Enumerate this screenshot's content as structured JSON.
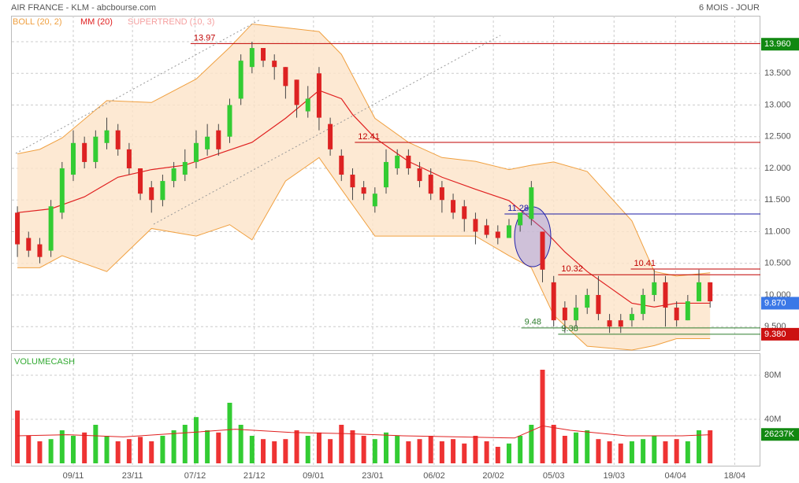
{
  "header": {
    "title": "AIR FRANCE - KLM - abcbourse.com",
    "period": "6 MOIS - JOUR"
  },
  "legend": {
    "boll": "BOLL (20, 2)",
    "mm": "MM (20)",
    "supertrend": "SUPERTREND (10, 3)"
  },
  "chart_data": [
    {
      "type": "candlestick",
      "grid": true,
      "xlim": [
        0,
        67
      ],
      "ylim": [
        9.13,
        14.41
      ],
      "xticks": [
        {
          "value": 5.5,
          "label": "09/11"
        },
        {
          "value": 10.8,
          "label": "23/11"
        },
        {
          "value": 16.4,
          "label": "07/12"
        },
        {
          "value": 21.7,
          "label": "21/12"
        },
        {
          "value": 27.0,
          "label": "09/01"
        },
        {
          "value": 32.3,
          "label": "23/01"
        },
        {
          "value": 37.8,
          "label": "06/02"
        },
        {
          "value": 43.1,
          "label": "20/02"
        },
        {
          "value": 48.5,
          "label": "05/03"
        },
        {
          "value": 53.9,
          "label": "19/03"
        },
        {
          "value": 59.4,
          "label": "04/04"
        },
        {
          "value": 64.7,
          "label": "18/04"
        }
      ],
      "yticks": [
        {
          "value": 9.5,
          "label": "9.500"
        },
        {
          "value": 10,
          "label": "10.000"
        },
        {
          "value": 10.5,
          "label": "10.500"
        },
        {
          "value": 11,
          "label": "11.000"
        },
        {
          "value": 11.5,
          "label": "11.500"
        },
        {
          "value": 12,
          "label": "12.000"
        },
        {
          "value": 12.5,
          "label": "12.500"
        },
        {
          "value": 13,
          "label": "13.000"
        },
        {
          "value": 13.5,
          "label": "13.500"
        },
        {
          "value": 14,
          "label": "14.000"
        }
      ],
      "up_color": "#33cc33",
      "down_color": "#dd2222",
      "x": [
        0.5,
        1.5,
        2.5,
        3.5,
        4.5,
        5.5,
        6.5,
        7.5,
        8.5,
        9.5,
        10.5,
        11.5,
        12.5,
        13.5,
        14.5,
        15.5,
        16.5,
        17.5,
        18.5,
        19.5,
        20.5,
        21.5,
        22.5,
        23.5,
        24.5,
        25.5,
        26.5,
        27.5,
        28.5,
        29.5,
        30.5,
        31.5,
        32.5,
        33.5,
        34.5,
        35.5,
        36.5,
        37.5,
        38.5,
        39.5,
        40.5,
        41.5,
        42.5,
        43.5,
        44.5,
        45.5,
        46.5,
        47.5,
        48.5,
        49.5,
        50.5,
        51.5,
        52.5,
        53.5,
        54.5,
        55.5,
        56.5,
        57.5,
        58.5,
        59.5,
        60.5,
        61.5,
        62.5
      ],
      "open": [
        11.3,
        10.9,
        10.8,
        10.7,
        11.3,
        11.9,
        12.4,
        12.1,
        12.4,
        12.6,
        12.3,
        12.0,
        11.7,
        11.5,
        11.8,
        11.9,
        12.1,
        12.3,
        12.6,
        12.5,
        13.1,
        13.6,
        13.9,
        13.7,
        13.6,
        13.4,
        12.9,
        13.5,
        12.7,
        12.2,
        11.9,
        11.7,
        11.4,
        11.7,
        12.0,
        12.2,
        12.0,
        11.9,
        11.7,
        11.5,
        11.4,
        11.2,
        11.1,
        11.0,
        10.9,
        11.1,
        11.2,
        11.0,
        10.2,
        9.8,
        9.6,
        9.8,
        10.0,
        9.6,
        9.6,
        9.6,
        9.7,
        10.0,
        10.2,
        9.8,
        9.6,
        9.9,
        10.2
      ],
      "high": [
        11.4,
        11.0,
        10.9,
        11.5,
        12.1,
        12.6,
        12.5,
        12.6,
        12.8,
        12.7,
        12.4,
        12.0,
        11.8,
        11.9,
        12.1,
        12.3,
        12.6,
        12.7,
        12.7,
        13.1,
        13.8,
        14.0,
        13.9,
        13.8,
        13.6,
        13.4,
        13.3,
        13.6,
        12.8,
        12.3,
        12.0,
        11.8,
        11.7,
        12.3,
        12.3,
        12.3,
        12.1,
        12.0,
        11.8,
        11.6,
        11.5,
        11.3,
        11.2,
        11.1,
        11.2,
        11.3,
        11.8,
        11.0,
        10.3,
        9.9,
        10.0,
        10.1,
        10.3,
        9.7,
        9.7,
        9.8,
        10.1,
        10.4,
        10.3,
        9.9,
        10.0,
        10.4,
        10.2
      ],
      "low": [
        10.6,
        10.6,
        10.5,
        10.6,
        11.2,
        11.8,
        12.0,
        12.0,
        12.3,
        12.2,
        11.9,
        11.5,
        11.3,
        11.4,
        11.7,
        11.8,
        12.0,
        12.2,
        12.2,
        12.4,
        13.0,
        13.5,
        13.6,
        13.4,
        13.1,
        12.8,
        12.8,
        12.6,
        12.2,
        11.8,
        11.5,
        11.5,
        11.3,
        11.6,
        11.9,
        11.9,
        11.7,
        11.5,
        11.3,
        11.2,
        11.0,
        10.8,
        10.9,
        10.8,
        10.9,
        11.0,
        11.1,
        10.2,
        9.5,
        9.4,
        9.5,
        9.7,
        9.6,
        9.4,
        9.4,
        9.5,
        9.6,
        9.9,
        9.5,
        9.5,
        9.6,
        9.9,
        9.8
      ],
      "close": [
        10.8,
        10.7,
        10.6,
        11.4,
        12.0,
        12.4,
        12.1,
        12.5,
        12.6,
        12.3,
        12.0,
        11.6,
        11.5,
        11.8,
        12.0,
        12.1,
        12.4,
        12.5,
        12.3,
        13.0,
        13.7,
        13.9,
        13.7,
        13.6,
        13.3,
        13.0,
        13.1,
        12.8,
        12.3,
        11.9,
        11.7,
        11.6,
        11.6,
        12.1,
        12.2,
        12.0,
        11.8,
        11.6,
        11.5,
        11.3,
        11.2,
        11.0,
        10.95,
        10.9,
        11.1,
        11.3,
        11.7,
        10.4,
        9.6,
        9.6,
        9.8,
        10.0,
        9.7,
        9.5,
        9.5,
        9.7,
        10.0,
        10.2,
        9.8,
        9.6,
        9.9,
        10.2,
        9.9
      ],
      "bollinger": {
        "color": "#f0a040",
        "fill": "#fde4c8",
        "x": [
          0.5,
          2.5,
          4.5,
          8.5,
          12.5,
          16.5,
          19.5,
          21.5,
          24.5,
          27.5,
          29.5,
          32.5,
          35.5,
          38.5,
          41.5,
          44.5,
          46.5,
          48.5,
          51.5,
          55.5,
          57.5,
          59.5,
          62.5
        ],
        "upper": [
          12.23,
          12.3,
          12.48,
          13.07,
          13.04,
          13.41,
          13.91,
          14.28,
          14.22,
          14.16,
          13.8,
          12.79,
          12.41,
          12.17,
          12.11,
          11.98,
          12.05,
          12.1,
          11.95,
          11.17,
          10.37,
          10.3,
          10.35
        ],
        "lower": [
          10.43,
          10.43,
          10.62,
          10.37,
          11.05,
          10.93,
          11.11,
          10.87,
          11.8,
          12.17,
          11.67,
          10.93,
          10.93,
          10.93,
          10.93,
          10.62,
          10.43,
          9.68,
          9.19,
          9.13,
          9.2,
          9.31,
          9.31
        ]
      },
      "mm20": {
        "color": "#e02020",
        "x": [
          0.5,
          3.5,
          6.5,
          9.5,
          12.5,
          15.5,
          18.5,
          21.5,
          24.5,
          27.5,
          29.5,
          30.5,
          32.5,
          35.5,
          38.5,
          41.5,
          44.5,
          47.5,
          49.5,
          51.5,
          53.5,
          55.5,
          57.5,
          59.5,
          62.5
        ],
        "values": [
          11.3,
          11.36,
          11.55,
          11.86,
          11.98,
          12.05,
          12.23,
          12.41,
          12.79,
          13.23,
          13.1,
          12.85,
          12.48,
          12.11,
          11.86,
          11.67,
          11.49,
          11.05,
          10.68,
          10.37,
          10.12,
          9.87,
          9.81,
          9.87,
          9.87
        ]
      },
      "levels": [
        {
          "value": 13.97,
          "start": 16.0,
          "color": "#c00000"
        },
        {
          "value": 12.41,
          "start": 30.7,
          "color": "#c00000"
        },
        {
          "value": 11.28,
          "start": 44.1,
          "color": "#1a1aa6"
        },
        {
          "value": 10.41,
          "start": 55.4,
          "color": "#c00000"
        },
        {
          "value": 10.32,
          "start": 48.9,
          "color": "#c00000"
        },
        {
          "value": 9.48,
          "start": 45.6,
          "color": "#2e7d2e"
        },
        {
          "value": 9.38,
          "start": 48.9,
          "color": "#2e7d2e"
        }
      ],
      "last_values": [
        {
          "value": 13.96,
          "label": "13.960",
          "color": "#118811"
        },
        {
          "value": 9.87,
          "label": "9.870",
          "color": "#3b78e7"
        },
        {
          "value": 9.38,
          "label": "9.380",
          "color": "#cc1111"
        }
      ]
    },
    {
      "type": "volume",
      "title": "VOLUMECASH",
      "grid": true,
      "xlim": [
        0,
        67
      ],
      "ylim": [
        0,
        100
      ],
      "yticks": [
        {
          "value": 40,
          "label": "40M"
        },
        {
          "value": 80,
          "label": "80M"
        }
      ],
      "up_color": "#33cc33",
      "down_color": "#ee3333",
      "values": [
        48,
        25,
        20,
        22,
        30,
        25,
        28,
        35,
        25,
        20,
        22,
        24,
        20,
        25,
        30,
        35,
        42,
        30,
        28,
        55,
        35,
        25,
        22,
        20,
        22,
        30,
        25,
        28,
        22,
        35,
        30,
        25,
        22,
        28,
        25,
        20,
        22,
        25,
        20,
        22,
        18,
        25,
        20,
        15,
        18,
        25,
        35,
        85,
        35,
        25,
        28,
        30,
        22,
        20,
        18,
        20,
        22,
        25,
        20,
        22,
        20,
        30,
        30
      ],
      "average": {
        "color": "#e02020",
        "x": [
          0.5,
          5,
          10,
          16,
          20,
          25,
          30,
          35,
          40,
          45,
          47.5,
          50,
          55,
          60,
          62.5
        ],
        "values": [
          25,
          26,
          24,
          28,
          31,
          28,
          27,
          25,
          24,
          23,
          34,
          30,
          25,
          25,
          26
        ]
      },
      "last_value": {
        "value": 26.237,
        "label": "26237K",
        "color": "#118811"
      }
    }
  ]
}
